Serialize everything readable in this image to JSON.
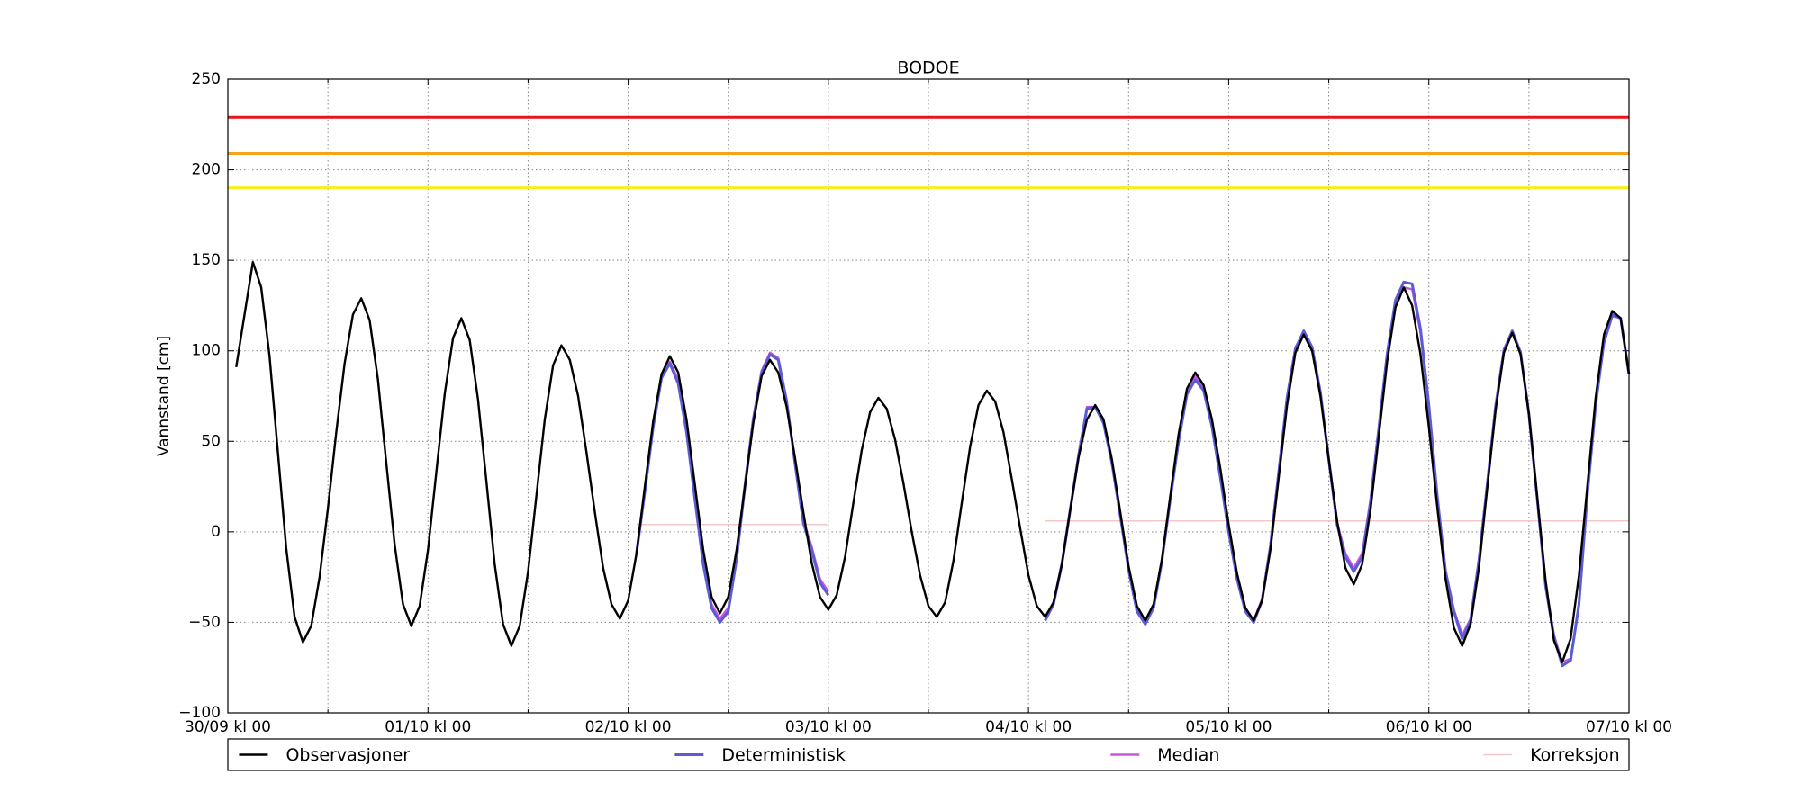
{
  "chart_data": {
    "type": "line",
    "title": "BODOE",
    "ylabel": "Vannstand [cm]",
    "x": [
      1,
      2,
      3,
      4,
      5,
      6,
      7,
      8,
      9,
      10,
      11,
      12,
      13,
      14,
      15,
      16,
      17,
      18,
      19,
      20,
      21,
      22,
      23,
      24,
      25,
      26,
      27,
      28,
      29,
      30,
      31,
      32,
      33,
      34,
      35,
      36,
      37,
      38,
      39,
      40,
      41,
      42,
      43,
      44,
      45,
      46,
      47,
      48,
      49,
      50,
      51,
      52,
      53,
      54,
      55,
      56,
      57,
      58,
      59,
      60,
      61,
      62,
      63,
      64,
      65,
      66,
      67,
      68,
      69,
      70,
      71,
      72,
      73,
      74,
      75,
      76,
      77,
      78,
      79,
      80,
      81,
      82,
      83,
      84,
      85,
      86,
      87,
      88,
      89,
      90,
      91,
      92,
      93,
      94,
      95,
      96,
      97,
      98,
      99,
      100,
      101,
      102,
      103,
      104,
      105,
      106,
      107,
      108,
      109,
      110,
      111,
      112,
      113,
      114,
      115,
      116,
      117,
      118,
      119,
      120,
      121,
      122,
      123,
      124,
      125,
      126,
      127,
      128,
      129,
      130,
      131,
      132,
      133,
      134,
      135,
      136,
      137,
      138,
      139,
      140,
      141,
      142,
      143,
      144,
      145,
      146,
      147,
      148,
      149,
      150,
      151,
      152,
      153,
      154,
      155,
      156,
      157,
      158,
      159,
      160,
      161,
      162,
      163,
      164,
      165,
      166,
      167,
      168
    ],
    "series": [
      {
        "name": "Observasjoner",
        "color": "#000000",
        "width": 2.4,
        "values": [
          91,
          120,
          149,
          135,
          97,
          44,
          -9,
          -47,
          -61,
          -52,
          -25,
          13,
          55,
          93,
          120,
          129,
          117,
          84,
          38,
          -7,
          -40,
          -52,
          -41,
          -10,
          33,
          76,
          107,
          118,
          106,
          73,
          28,
          -18,
          -51,
          -63,
          -52,
          -22,
          20,
          62,
          92,
          103,
          95,
          75,
          44,
          11,
          -20,
          -40,
          -48,
          -38,
          -12,
          25,
          61,
          87,
          97,
          88,
          62,
          26,
          -10,
          -36,
          -45,
          -36,
          -10,
          25,
          60,
          86,
          95,
          88,
          69,
          41,
          11,
          -17,
          -36,
          -43,
          -35,
          -14,
          16,
          45,
          66,
          74,
          68,
          51,
          27,
          0,
          -24,
          -41,
          -47,
          -39,
          -16,
          16,
          47,
          70,
          78,
          72,
          55,
          29,
          2,
          -24,
          -41,
          -47,
          -39,
          -18,
          12,
          41,
          62,
          70,
          62,
          40,
          11,
          -19,
          -41,
          -49,
          -40,
          -15,
          20,
          54,
          79,
          88,
          81,
          62,
          35,
          4,
          -23,
          -42,
          -49,
          -38,
          -10,
          30,
          70,
          99,
          109,
          100,
          75,
          40,
          6,
          -20,
          -29,
          -18,
          12,
          53,
          94,
          124,
          135,
          125,
          98,
          58,
          14,
          -26,
          -53,
          -63,
          -51,
          -20,
          24,
          67,
          99,
          110,
          98,
          65,
          19,
          -27,
          -60,
          -72,
          -59,
          -24,
          25,
          74,
          109,
          122,
          118,
          87
        ]
      },
      {
        "name": "Deterministisk",
        "color": "#5b5bd6",
        "width": 3,
        "values": [
          null,
          null,
          null,
          null,
          null,
          null,
          null,
          null,
          null,
          null,
          null,
          null,
          null,
          null,
          null,
          null,
          null,
          null,
          null,
          null,
          null,
          null,
          null,
          null,
          null,
          null,
          null,
          null,
          null,
          null,
          null,
          null,
          null,
          null,
          null,
          null,
          null,
          null,
          null,
          null,
          null,
          null,
          null,
          null,
          null,
          null,
          null,
          null,
          -12,
          22,
          58,
          85,
          93,
          82,
          55,
          18,
          -18,
          -42,
          -50,
          -44,
          -15,
          25,
          62,
          88,
          98,
          95,
          72,
          38,
          5,
          -10,
          -28,
          -35,
          null,
          null,
          null,
          null,
          null,
          null,
          null,
          null,
          null,
          null,
          null,
          null,
          null,
          null,
          null,
          null,
          null,
          null,
          null,
          null,
          null,
          null,
          null,
          null,
          null,
          -49,
          -40,
          -18,
          12,
          42,
          68,
          69,
          60,
          38,
          9,
          -21,
          -44,
          -51,
          -42,
          -16,
          18,
          50,
          76,
          84,
          78,
          58,
          30,
          0,
          -26,
          -44,
          -50,
          -38,
          -8,
          33,
          74,
          101,
          111,
          102,
          77,
          40,
          4,
          -14,
          -22,
          -14,
          16,
          57,
          98,
          128,
          138,
          137,
          112,
          70,
          20,
          -22,
          -44,
          -59,
          -49,
          -16,
          26,
          69,
          100,
          111,
          99,
          65,
          18,
          -30,
          -58,
          -74,
          -71,
          -40,
          20,
          70,
          105,
          120,
          118,
          87
        ]
      },
      {
        "name": "Median",
        "color": "#cc55dd",
        "width": 2.4,
        "values": [
          null,
          null,
          null,
          null,
          null,
          null,
          null,
          null,
          null,
          null,
          null,
          null,
          null,
          null,
          null,
          null,
          null,
          null,
          null,
          null,
          null,
          null,
          null,
          null,
          null,
          null,
          null,
          null,
          null,
          null,
          null,
          null,
          null,
          null,
          null,
          null,
          null,
          null,
          null,
          null,
          null,
          null,
          null,
          null,
          null,
          null,
          null,
          null,
          -12,
          24,
          60,
          86,
          94,
          84,
          57,
          20,
          -16,
          -40,
          -48,
          -42,
          -13,
          27,
          63,
          89,
          99,
          96,
          73,
          39,
          6,
          -8,
          -26,
          -33,
          null,
          null,
          null,
          null,
          null,
          null,
          null,
          null,
          null,
          null,
          null,
          null,
          null,
          null,
          null,
          null,
          null,
          null,
          null,
          null,
          null,
          null,
          null,
          null,
          null,
          -48,
          -39,
          -17,
          13,
          43,
          69,
          69,
          60,
          38,
          9,
          -20,
          -43,
          -50,
          -41,
          -15,
          19,
          51,
          79,
          86,
          79,
          59,
          31,
          1,
          -24,
          -42,
          -49,
          -37,
          -7,
          34,
          75,
          102,
          110,
          101,
          76,
          40,
          5,
          -12,
          -20,
          -12,
          18,
          58,
          99,
          127,
          135,
          134,
          110,
          69,
          20,
          -21,
          -43,
          -57,
          -48,
          -15,
          27,
          70,
          101,
          111,
          99,
          65,
          18,
          -29,
          -57,
          -72,
          -70,
          -41,
          21,
          71,
          104,
          119,
          118,
          87
        ]
      },
      {
        "name": "Korreksjon",
        "color": "#f4c8c8",
        "width": 1.5,
        "values": [
          null,
          null,
          null,
          null,
          null,
          null,
          null,
          null,
          null,
          null,
          null,
          null,
          null,
          null,
          null,
          null,
          null,
          null,
          null,
          null,
          null,
          null,
          null,
          null,
          null,
          null,
          null,
          null,
          null,
          null,
          null,
          null,
          null,
          null,
          null,
          null,
          null,
          null,
          null,
          null,
          null,
          null,
          null,
          null,
          null,
          null,
          null,
          null,
          4,
          4,
          4,
          4,
          4,
          4,
          4,
          4,
          4,
          4,
          4,
          4,
          4,
          4,
          4,
          4,
          4,
          4,
          4,
          4,
          4,
          4,
          4,
          4,
          null,
          null,
          null,
          null,
          null,
          null,
          null,
          null,
          null,
          null,
          null,
          null,
          null,
          null,
          null,
          null,
          null,
          null,
          null,
          null,
          null,
          null,
          null,
          null,
          null,
          6,
          6,
          6,
          6,
          6,
          6,
          6,
          6,
          6,
          6,
          6,
          6,
          6,
          6,
          6,
          6,
          6,
          6,
          6,
          6,
          6,
          6,
          6,
          6,
          6,
          6,
          6,
          6,
          6,
          6,
          6,
          6,
          6,
          6,
          6,
          6,
          6,
          6,
          6,
          6,
          6,
          6,
          6,
          6,
          6,
          6,
          6,
          6,
          6,
          6,
          6,
          6,
          6,
          6,
          6,
          6,
          6,
          6,
          6,
          6,
          6,
          6,
          6,
          6,
          6,
          6,
          6,
          6,
          6,
          6,
          6
        ]
      }
    ],
    "thresholds": [
      {
        "value": 229,
        "color": "#e8141c"
      },
      {
        "value": 209,
        "color": "#f5a31a"
      },
      {
        "value": 190,
        "color": "#f5f01e"
      }
    ],
    "xlim": [
      0,
      168
    ],
    "xticks": [
      {
        "value": 0,
        "label": "30/09 kl 00"
      },
      {
        "value": 24,
        "label": "01/10 kl 00"
      },
      {
        "value": 48,
        "label": "02/10 kl 00"
      },
      {
        "value": 72,
        "label": "03/10 kl 00"
      },
      {
        "value": 96,
        "label": "04/10 kl 00"
      },
      {
        "value": 120,
        "label": "05/10 kl 00"
      },
      {
        "value": 144,
        "label": "06/10 kl 00"
      },
      {
        "value": 168,
        "label": "07/10 kl 00"
      }
    ],
    "xminorticks": [
      12,
      36,
      60,
      84,
      108,
      132,
      156
    ],
    "ylim": [
      -100,
      250
    ],
    "yticks": [
      {
        "value": -100,
        "label": "−100"
      },
      {
        "value": -50,
        "label": "−50"
      },
      0,
      50,
      100,
      150,
      200,
      250
    ],
    "grid": true,
    "legend": "bottom"
  }
}
